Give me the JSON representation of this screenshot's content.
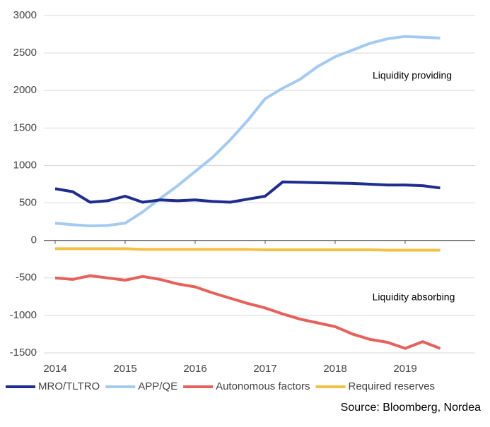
{
  "chart_data": {
    "type": "line",
    "x": [
      2014,
      2014.25,
      2014.5,
      2014.75,
      2015,
      2015.25,
      2015.5,
      2015.75,
      2016,
      2016.25,
      2016.5,
      2016.75,
      2017,
      2017.25,
      2017.5,
      2017.75,
      2018,
      2018.25,
      2018.5,
      2018.75,
      2019,
      2019.25,
      2019.5
    ],
    "series": [
      {
        "name": "MRO/TLTRO",
        "color": "#1f2d8f",
        "values": [
          690,
          650,
          510,
          530,
          590,
          510,
          540,
          530,
          540,
          520,
          510,
          550,
          590,
          780,
          775,
          770,
          765,
          760,
          750,
          740,
          740,
          730,
          700
        ]
      },
      {
        "name": "APP/QE",
        "color": "#a3cbf2",
        "values": [
          230,
          210,
          195,
          200,
          230,
          380,
          560,
          730,
          920,
          1110,
          1340,
          1600,
          1890,
          2030,
          2150,
          2320,
          2450,
          2540,
          2630,
          2690,
          2720,
          2710,
          2700
        ]
      },
      {
        "name": "Autonomous factors",
        "color": "#e8605a",
        "values": [
          -500,
          -520,
          -470,
          -500,
          -530,
          -480,
          -520,
          -580,
          -620,
          -700,
          -770,
          -840,
          -900,
          -980,
          -1050,
          -1100,
          -1150,
          -1250,
          -1320,
          -1360,
          -1440,
          -1350,
          -1440
        ]
      },
      {
        "name": "Required reserves",
        "color": "#f5c143",
        "values": [
          -110,
          -110,
          -110,
          -110,
          -110,
          -120,
          -120,
          -120,
          -120,
          -120,
          -120,
          -120,
          -125,
          -125,
          -125,
          -125,
          -125,
          -125,
          -125,
          -130,
          -130,
          -130,
          -130
        ]
      }
    ],
    "xlim": [
      2014,
      2020
    ],
    "xticks": [
      2014,
      2015,
      2016,
      2017,
      2018,
      2019
    ],
    "ylim": [
      -1500,
      3000
    ],
    "yticks": [
      -1500,
      -1000,
      -500,
      0,
      500,
      1000,
      1500,
      2000,
      2500,
      3000
    ],
    "grid": true,
    "annotations": [
      "Liquidity providing",
      "Liquidity absorbing"
    ],
    "source": "Source: Bloomberg, Nordea"
  }
}
